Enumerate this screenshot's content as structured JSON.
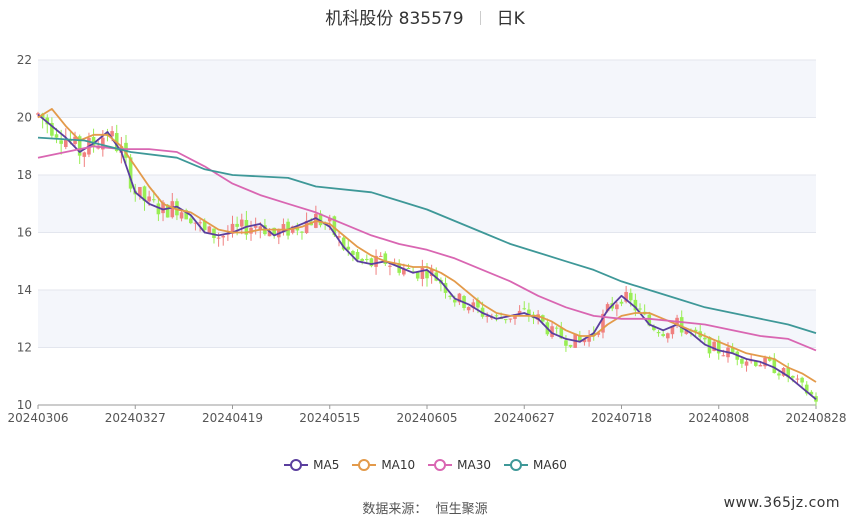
{
  "title": {
    "stock": "机科股份 835579",
    "period": "日K"
  },
  "source_label": "数据来源：",
  "source_value": "恒生聚源",
  "watermark": "www.365jz.com",
  "colors": {
    "up": "#f08080",
    "down": "#99ee55",
    "ma5": "#5a3e9e",
    "ma10": "#e39a4a",
    "ma30": "#d966b2",
    "ma60": "#3e9898"
  },
  "chart_data": {
    "type": "candlestick",
    "ylim": [
      10,
      22
    ],
    "yticks": [
      10,
      12,
      14,
      16,
      18,
      20,
      22
    ],
    "xticks": [
      "20240306",
      "20240327",
      "20240419",
      "20240515",
      "20240605",
      "20240627",
      "20240718",
      "20240808",
      "20240828"
    ],
    "legend": [
      "MA5",
      "MA10",
      "MA30",
      "MA60"
    ],
    "legend_position": "bottom",
    "series_ma": {
      "MA5": [
        [
          0,
          20.1
        ],
        [
          3,
          19.7
        ],
        [
          6,
          19.3
        ],
        [
          9,
          18.8
        ],
        [
          12,
          19.1
        ],
        [
          15,
          19.5
        ],
        [
          18,
          18.8
        ],
        [
          21,
          17.4
        ],
        [
          24,
          17.0
        ],
        [
          27,
          16.8
        ],
        [
          30,
          16.9
        ],
        [
          33,
          16.6
        ],
        [
          36,
          16.0
        ],
        [
          39,
          15.9
        ],
        [
          42,
          16.0
        ],
        [
          45,
          16.2
        ],
        [
          48,
          16.3
        ],
        [
          51,
          15.9
        ],
        [
          54,
          16.1
        ],
        [
          57,
          16.3
        ],
        [
          60,
          16.5
        ],
        [
          63,
          16.2
        ],
        [
          66,
          15.5
        ],
        [
          69,
          15.0
        ],
        [
          72,
          14.9
        ],
        [
          75,
          15.0
        ],
        [
          78,
          14.8
        ],
        [
          81,
          14.6
        ],
        [
          84,
          14.7
        ],
        [
          87,
          14.3
        ],
        [
          90,
          13.7
        ],
        [
          93,
          13.5
        ],
        [
          96,
          13.2
        ],
        [
          99,
          13.0
        ],
        [
          102,
          13.1
        ],
        [
          105,
          13.2
        ],
        [
          108,
          13.0
        ],
        [
          111,
          12.5
        ],
        [
          114,
          12.3
        ],
        [
          117,
          12.2
        ],
        [
          120,
          12.5
        ],
        [
          123,
          13.3
        ],
        [
          126,
          13.8
        ],
        [
          129,
          13.4
        ],
        [
          132,
          12.8
        ],
        [
          135,
          12.6
        ],
        [
          138,
          12.8
        ],
        [
          141,
          12.5
        ],
        [
          144,
          12.1
        ],
        [
          147,
          11.9
        ],
        [
          150,
          11.8
        ],
        [
          153,
          11.6
        ],
        [
          156,
          11.5
        ],
        [
          159,
          11.3
        ],
        [
          162,
          11.0
        ],
        [
          165,
          10.6
        ],
        [
          168,
          10.2
        ]
      ],
      "MA10": [
        [
          0,
          20.0
        ],
        [
          3,
          20.3
        ],
        [
          6,
          19.7
        ],
        [
          9,
          19.2
        ],
        [
          12,
          19.4
        ],
        [
          15,
          19.4
        ],
        [
          18,
          19.0
        ],
        [
          21,
          18.3
        ],
        [
          24,
          17.6
        ],
        [
          27,
          17.0
        ],
        [
          30,
          16.8
        ],
        [
          33,
          16.7
        ],
        [
          36,
          16.4
        ],
        [
          39,
          16.1
        ],
        [
          42,
          16.0
        ],
        [
          45,
          16.0
        ],
        [
          48,
          16.1
        ],
        [
          51,
          16.1
        ],
        [
          54,
          16.1
        ],
        [
          57,
          16.2
        ],
        [
          60,
          16.4
        ],
        [
          63,
          16.3
        ],
        [
          66,
          15.9
        ],
        [
          69,
          15.5
        ],
        [
          72,
          15.2
        ],
        [
          75,
          15.0
        ],
        [
          78,
          14.9
        ],
        [
          81,
          14.8
        ],
        [
          84,
          14.8
        ],
        [
          87,
          14.6
        ],
        [
          90,
          14.3
        ],
        [
          93,
          13.9
        ],
        [
          96,
          13.5
        ],
        [
          99,
          13.2
        ],
        [
          102,
          13.1
        ],
        [
          105,
          13.1
        ],
        [
          108,
          13.1
        ],
        [
          111,
          12.9
        ],
        [
          114,
          12.6
        ],
        [
          117,
          12.4
        ],
        [
          120,
          12.4
        ],
        [
          123,
          12.8
        ],
        [
          126,
          13.1
        ],
        [
          129,
          13.2
        ],
        [
          132,
          13.2
        ],
        [
          135,
          13.0
        ],
        [
          138,
          12.8
        ],
        [
          141,
          12.6
        ],
        [
          144,
          12.4
        ],
        [
          147,
          12.2
        ],
        [
          150,
          12.0
        ],
        [
          153,
          11.8
        ],
        [
          156,
          11.7
        ],
        [
          159,
          11.6
        ],
        [
          162,
          11.3
        ],
        [
          165,
          11.1
        ],
        [
          168,
          10.8
        ]
      ],
      "MA30": [
        [
          0,
          18.6
        ],
        [
          6,
          18.8
        ],
        [
          12,
          19.0
        ],
        [
          18,
          18.9
        ],
        [
          24,
          18.9
        ],
        [
          30,
          18.8
        ],
        [
          36,
          18.3
        ],
        [
          42,
          17.7
        ],
        [
          48,
          17.3
        ],
        [
          54,
          17.0
        ],
        [
          60,
          16.7
        ],
        [
          66,
          16.3
        ],
        [
          72,
          15.9
        ],
        [
          78,
          15.6
        ],
        [
          84,
          15.4
        ],
        [
          90,
          15.1
        ],
        [
          96,
          14.7
        ],
        [
          102,
          14.3
        ],
        [
          108,
          13.8
        ],
        [
          114,
          13.4
        ],
        [
          120,
          13.1
        ],
        [
          126,
          13.0
        ],
        [
          132,
          13.0
        ],
        [
          138,
          12.9
        ],
        [
          144,
          12.8
        ],
        [
          150,
          12.6
        ],
        [
          156,
          12.4
        ],
        [
          162,
          12.3
        ],
        [
          168,
          11.9
        ]
      ],
      "MA60": [
        [
          0,
          19.3
        ],
        [
          10,
          19.2
        ],
        [
          20,
          18.8
        ],
        [
          30,
          18.6
        ],
        [
          36,
          18.2
        ],
        [
          42,
          18.0
        ],
        [
          54,
          17.9
        ],
        [
          60,
          17.6
        ],
        [
          72,
          17.4
        ],
        [
          78,
          17.1
        ],
        [
          84,
          16.8
        ],
        [
          90,
          16.4
        ],
        [
          96,
          16.0
        ],
        [
          102,
          15.6
        ],
        [
          108,
          15.3
        ],
        [
          114,
          15.0
        ],
        [
          120,
          14.7
        ],
        [
          126,
          14.3
        ],
        [
          132,
          14.0
        ],
        [
          138,
          13.7
        ],
        [
          144,
          13.4
        ],
        [
          150,
          13.2
        ],
        [
          156,
          13.0
        ],
        [
          162,
          12.8
        ],
        [
          168,
          12.5
        ]
      ]
    }
  }
}
